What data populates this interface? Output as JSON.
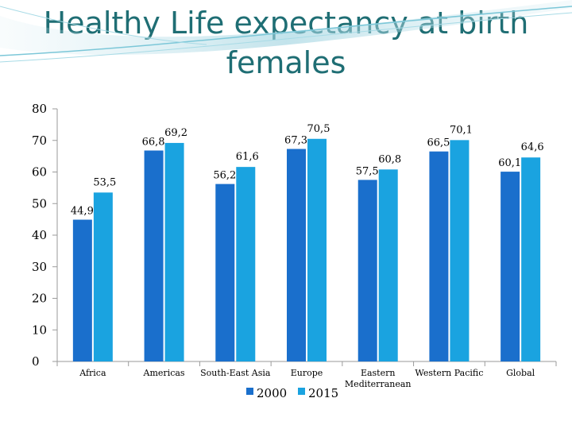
{
  "title_line1": "Healthy Life expectancy at birth",
  "title_line2": "females",
  "chart_data": {
    "type": "bar",
    "title": "Healthy Life expectancy at birth females",
    "categories": [
      "Africa",
      "Americas",
      "South-East Asia",
      "Europe",
      "Eastern Mediterranean",
      "Western Pacific",
      "Global"
    ],
    "series": [
      {
        "name": "2000",
        "values": [
          44.9,
          66.8,
          56.2,
          67.3,
          57.5,
          66.5,
          60.1
        ],
        "labels": [
          "44,9",
          "66,8",
          "56,2",
          "67,3",
          "57,5",
          "66,5",
          "60,1"
        ],
        "color": "#1a6fcc"
      },
      {
        "name": "2015",
        "values": [
          53.5,
          69.2,
          61.6,
          70.5,
          60.8,
          70.1,
          64.6
        ],
        "labels": [
          "53,5",
          "69,2",
          "61,6",
          "70,5",
          "60,8",
          "70,1",
          "64,6"
        ],
        "color": "#1aa3e0"
      }
    ],
    "ylim": [
      0,
      80
    ],
    "yticks": [
      "0",
      "10",
      "20",
      "30",
      "40",
      "50",
      "60",
      "70",
      "80"
    ],
    "xlabel": "",
    "ylabel": "",
    "legend_position": "bottom"
  }
}
